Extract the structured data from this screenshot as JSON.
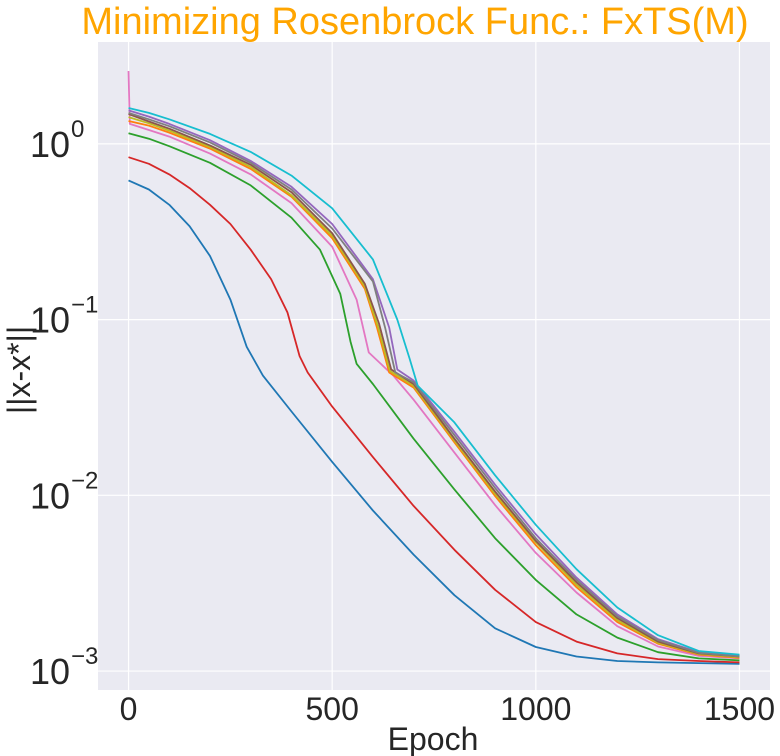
{
  "chart_data": {
    "type": "line",
    "title": "Minimizing Rosenbrock Func.: FxTS(M)",
    "title_color": "#ffa500",
    "xlabel": "Epoch",
    "ylabel": "||x-x*||",
    "xlim": [
      -75,
      1575
    ],
    "ylim": [
      0.00078,
      3.8
    ],
    "yscale": "log",
    "x_ticks": [
      0,
      500,
      1000,
      1500
    ],
    "x_tick_labels": [
      "0",
      "500",
      "1000",
      "1500"
    ],
    "y_ticks": [
      0.001,
      0.01,
      0.1,
      1
    ],
    "y_tick_labels": [
      {
        "base": "10",
        "exp": "−3"
      },
      {
        "base": "10",
        "exp": "−2"
      },
      {
        "base": "10",
        "exp": "−1"
      },
      {
        "base": "10",
        "exp": "0"
      }
    ],
    "grid": true,
    "legend": "none",
    "background": "#eaeaf2",
    "grid_color": "#ffffff",
    "series": [
      {
        "color": "#1f77b4",
        "points": [
          [
            0,
            0.62
          ],
          [
            50,
            0.55
          ],
          [
            100,
            0.45
          ],
          [
            150,
            0.34
          ],
          [
            200,
            0.23
          ],
          [
            250,
            0.13
          ],
          [
            290,
            0.07
          ],
          [
            330,
            0.048
          ],
          [
            400,
            0.03
          ],
          [
            500,
            0.0155
          ],
          [
            600,
            0.0082
          ],
          [
            700,
            0.0046
          ],
          [
            800,
            0.0027
          ],
          [
            900,
            0.00175
          ],
          [
            1000,
            0.00137
          ],
          [
            1100,
            0.00121
          ],
          [
            1200,
            0.00114
          ],
          [
            1300,
            0.00112
          ],
          [
            1400,
            0.00111
          ],
          [
            1500,
            0.0011
          ]
        ]
      },
      {
        "color": "#d62728",
        "points": [
          [
            0,
            0.84
          ],
          [
            50,
            0.77
          ],
          [
            100,
            0.67
          ],
          [
            150,
            0.56
          ],
          [
            200,
            0.45
          ],
          [
            250,
            0.35
          ],
          [
            300,
            0.25
          ],
          [
            350,
            0.17
          ],
          [
            390,
            0.11
          ],
          [
            420,
            0.062
          ],
          [
            440,
            0.05
          ],
          [
            500,
            0.032
          ],
          [
            600,
            0.0165
          ],
          [
            700,
            0.0087
          ],
          [
            800,
            0.0049
          ],
          [
            900,
            0.0029
          ],
          [
            1000,
            0.0019
          ],
          [
            1100,
            0.00147
          ],
          [
            1200,
            0.00126
          ],
          [
            1300,
            0.00117
          ],
          [
            1400,
            0.00114
          ],
          [
            1500,
            0.00112
          ]
        ]
      },
      {
        "color": "#2ca02c",
        "points": [
          [
            0,
            1.15
          ],
          [
            50,
            1.07
          ],
          [
            100,
            0.97
          ],
          [
            200,
            0.78
          ],
          [
            300,
            0.58
          ],
          [
            400,
            0.38
          ],
          [
            470,
            0.25
          ],
          [
            520,
            0.14
          ],
          [
            545,
            0.075
          ],
          [
            560,
            0.056
          ],
          [
            600,
            0.043
          ],
          [
            700,
            0.021
          ],
          [
            800,
            0.0108
          ],
          [
            900,
            0.0057
          ],
          [
            1000,
            0.0033
          ],
          [
            1100,
            0.0021
          ],
          [
            1200,
            0.00155
          ],
          [
            1300,
            0.00128
          ],
          [
            1400,
            0.00118
          ],
          [
            1500,
            0.00115
          ]
        ]
      },
      {
        "color": "#e377c2",
        "points": [
          [
            0,
            2.6
          ],
          [
            3,
            1.3
          ],
          [
            50,
            1.2
          ],
          [
            100,
            1.1
          ],
          [
            200,
            0.88
          ],
          [
            300,
            0.67
          ],
          [
            400,
            0.46
          ],
          [
            500,
            0.26
          ],
          [
            560,
            0.13
          ],
          [
            590,
            0.065
          ],
          [
            650,
            0.048
          ],
          [
            700,
            0.035
          ],
          [
            800,
            0.0175
          ],
          [
            900,
            0.0088
          ],
          [
            1000,
            0.0047
          ],
          [
            1100,
            0.0028
          ],
          [
            1200,
            0.0018
          ],
          [
            1300,
            0.00138
          ],
          [
            1400,
            0.00122
          ],
          [
            1500,
            0.00118
          ]
        ]
      },
      {
        "color": "#ff7f0e",
        "points": [
          [
            0,
            1.35
          ],
          [
            50,
            1.27
          ],
          [
            100,
            1.16
          ],
          [
            200,
            0.94
          ],
          [
            300,
            0.72
          ],
          [
            400,
            0.5
          ],
          [
            500,
            0.29
          ],
          [
            580,
            0.15
          ],
          [
            610,
            0.09
          ],
          [
            640,
            0.05
          ],
          [
            700,
            0.041
          ],
          [
            800,
            0.02
          ],
          [
            900,
            0.0099
          ],
          [
            1000,
            0.0052
          ],
          [
            1100,
            0.003
          ],
          [
            1200,
            0.0019
          ],
          [
            1300,
            0.00143
          ],
          [
            1400,
            0.00124
          ],
          [
            1500,
            0.00119
          ]
        ]
      },
      {
        "color": "#bcbd22",
        "points": [
          [
            0,
            1.42
          ],
          [
            50,
            1.31
          ],
          [
            100,
            1.19
          ],
          [
            200,
            0.96
          ],
          [
            300,
            0.74
          ],
          [
            400,
            0.51
          ],
          [
            500,
            0.3
          ],
          [
            580,
            0.155
          ],
          [
            612,
            0.092
          ],
          [
            642,
            0.051
          ],
          [
            700,
            0.042
          ],
          [
            800,
            0.0205
          ],
          [
            900,
            0.0102
          ],
          [
            1000,
            0.0054
          ],
          [
            1100,
            0.0031
          ],
          [
            1200,
            0.00195
          ],
          [
            1300,
            0.00145
          ],
          [
            1400,
            0.00125
          ],
          [
            1500,
            0.0012
          ]
        ]
      },
      {
        "color": "#8c564b",
        "points": [
          [
            0,
            1.48
          ],
          [
            50,
            1.34
          ],
          [
            100,
            1.22
          ],
          [
            200,
            0.98
          ],
          [
            300,
            0.76
          ],
          [
            400,
            0.53
          ],
          [
            500,
            0.31
          ],
          [
            580,
            0.16
          ],
          [
            615,
            0.095
          ],
          [
            645,
            0.052
          ],
          [
            700,
            0.043
          ],
          [
            800,
            0.021
          ],
          [
            900,
            0.0105
          ],
          [
            1000,
            0.0055
          ],
          [
            1100,
            0.0032
          ],
          [
            1200,
            0.002
          ],
          [
            1300,
            0.00147
          ],
          [
            1400,
            0.00126
          ],
          [
            1500,
            0.00121
          ]
        ]
      },
      {
        "color": "#9467bd",
        "points": [
          [
            0,
            1.55
          ],
          [
            50,
            1.43
          ],
          [
            100,
            1.3
          ],
          [
            200,
            1.05
          ],
          [
            300,
            0.8
          ],
          [
            400,
            0.57
          ],
          [
            500,
            0.35
          ],
          [
            600,
            0.17
          ],
          [
            640,
            0.09
          ],
          [
            660,
            0.052
          ],
          [
            700,
            0.045
          ],
          [
            800,
            0.023
          ],
          [
            900,
            0.0115
          ],
          [
            1000,
            0.006
          ],
          [
            1100,
            0.0034
          ],
          [
            1200,
            0.0021
          ],
          [
            1300,
            0.00152
          ],
          [
            1400,
            0.00128
          ],
          [
            1500,
            0.00122
          ]
        ]
      },
      {
        "color": "#7f7f7f",
        "points": [
          [
            0,
            1.5
          ],
          [
            50,
            1.38
          ],
          [
            100,
            1.26
          ],
          [
            200,
            1.02
          ],
          [
            300,
            0.78
          ],
          [
            400,
            0.55
          ],
          [
            500,
            0.33
          ],
          [
            600,
            0.165
          ],
          [
            630,
            0.09
          ],
          [
            655,
            0.05
          ],
          [
            700,
            0.044
          ],
          [
            800,
            0.022
          ],
          [
            900,
            0.011
          ],
          [
            1000,
            0.0057
          ],
          [
            1100,
            0.0033
          ],
          [
            1200,
            0.00205
          ],
          [
            1300,
            0.0015
          ],
          [
            1400,
            0.00127
          ],
          [
            1500,
            0.00121
          ]
        ]
      },
      {
        "color": "#17becf",
        "points": [
          [
            0,
            1.6
          ],
          [
            50,
            1.5
          ],
          [
            100,
            1.38
          ],
          [
            200,
            1.14
          ],
          [
            300,
            0.9
          ],
          [
            400,
            0.66
          ],
          [
            500,
            0.43
          ],
          [
            600,
            0.22
          ],
          [
            660,
            0.1
          ],
          [
            690,
            0.06
          ],
          [
            710,
            0.042
          ],
          [
            800,
            0.026
          ],
          [
            900,
            0.013
          ],
          [
            1000,
            0.0068
          ],
          [
            1100,
            0.0038
          ],
          [
            1200,
            0.0023
          ],
          [
            1300,
            0.0016
          ],
          [
            1400,
            0.0013
          ],
          [
            1500,
            0.00124
          ]
        ]
      }
    ]
  }
}
